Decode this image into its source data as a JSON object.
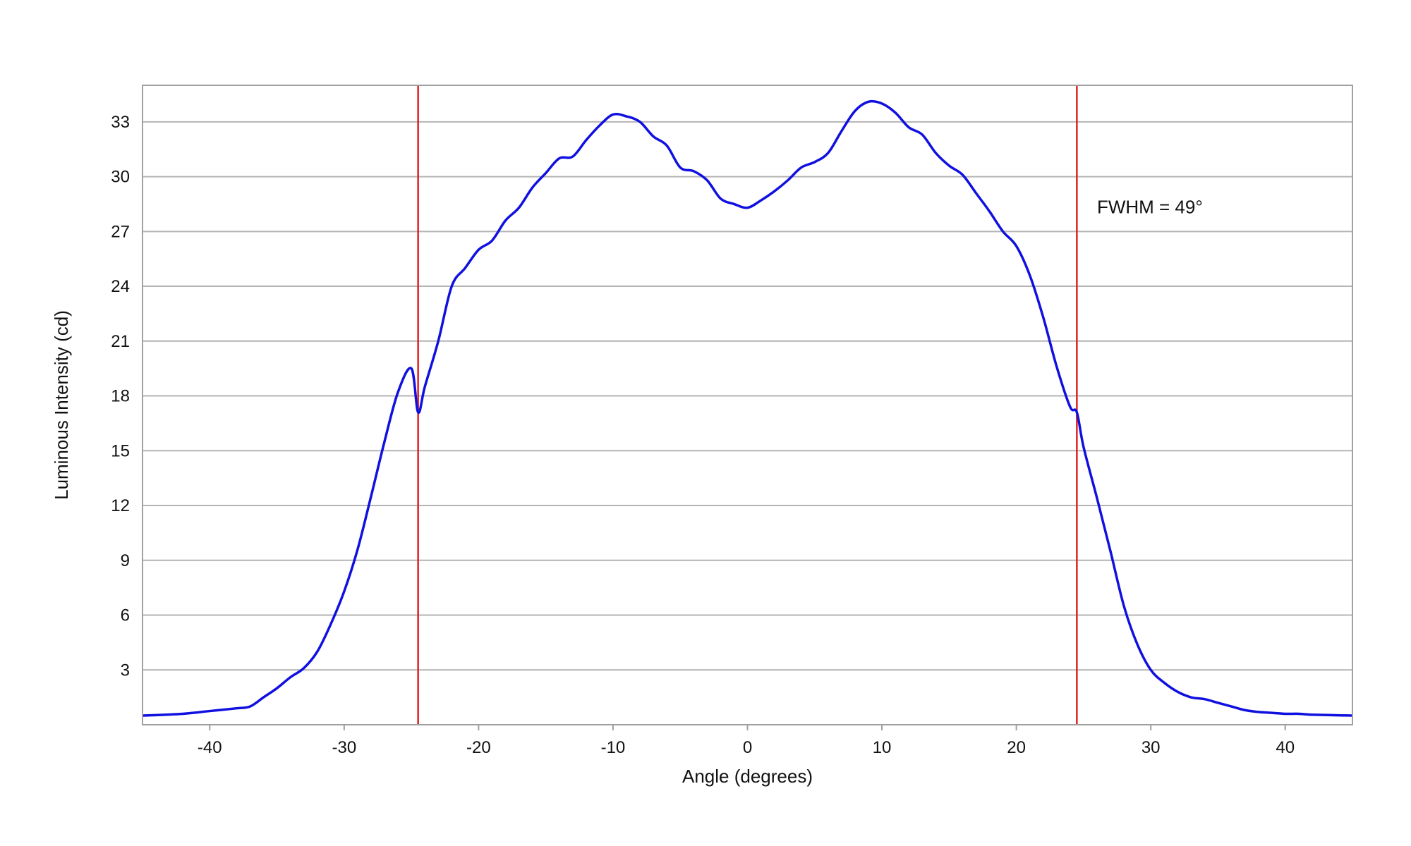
{
  "chart_data": {
    "type": "line",
    "title": "",
    "xlabel": "Angle (degrees)",
    "ylabel": "Luminous Intensity (cd)",
    "xlim": [
      -45,
      45
    ],
    "ylim": [
      0,
      35
    ],
    "grid": "horizontal",
    "legend": "none",
    "x_ticks": [
      -40,
      -30,
      -20,
      -10,
      0,
      10,
      20,
      30,
      40
    ],
    "x_tick_labels": [
      "-40",
      "-30",
      "-20",
      "-10",
      "0",
      "10",
      "20",
      "30",
      "40"
    ],
    "y_ticks": [
      3,
      6,
      9,
      12,
      15,
      18,
      21,
      24,
      27,
      30,
      33
    ],
    "y_tick_labels": [
      "3",
      "6",
      "9",
      "12",
      "15",
      "18",
      "21",
      "24",
      "27",
      "30",
      "33"
    ],
    "series": [
      {
        "color": "#1010e0",
        "x": [
          -45,
          -42,
          -40,
          -38,
          -37,
          -36,
          -35,
          -34,
          -33,
          -32,
          -31,
          -30,
          -29,
          -28,
          -27,
          -26,
          -25,
          -24.5,
          -24,
          -23,
          -22,
          -21,
          -20,
          -19,
          -18,
          -17,
          -16,
          -15,
          -14,
          -13,
          -12,
          -11,
          -10,
          -9,
          -8,
          -7,
          -6,
          -5,
          -4,
          -3,
          -2,
          -1,
          0,
          1,
          2,
          3,
          4,
          5,
          6,
          7,
          8,
          9,
          10,
          11,
          12,
          13,
          14,
          15,
          16,
          17,
          18,
          19,
          20,
          21,
          22,
          23,
          24,
          24.5,
          25,
          26,
          27,
          28,
          29,
          30,
          31,
          32,
          33,
          34,
          35,
          36,
          37,
          38,
          39,
          40,
          41,
          42,
          45
        ],
        "y": [
          0.5,
          0.6,
          0.75,
          0.9,
          1.0,
          1.5,
          2.0,
          2.6,
          3.1,
          4.0,
          5.5,
          7.3,
          9.6,
          12.5,
          15.5,
          18.2,
          19.5,
          17.1,
          18.5,
          21.0,
          24.0,
          25.0,
          26.0,
          26.5,
          27.6,
          28.3,
          29.4,
          30.2,
          31.0,
          31.1,
          32.0,
          32.8,
          33.4,
          33.3,
          33.0,
          32.2,
          31.7,
          30.5,
          30.3,
          29.8,
          28.8,
          28.5,
          28.3,
          28.7,
          29.2,
          29.8,
          30.5,
          30.8,
          31.3,
          32.5,
          33.6,
          34.1,
          34.0,
          33.5,
          32.7,
          32.3,
          31.3,
          30.6,
          30.1,
          29.1,
          28.1,
          27.0,
          26.2,
          24.6,
          22.3,
          19.6,
          17.4,
          17.1,
          15.2,
          12.4,
          9.5,
          6.5,
          4.4,
          3.0,
          2.3,
          1.8,
          1.5,
          1.4,
          1.2,
          1.0,
          0.8,
          0.7,
          0.65,
          0.6,
          0.6,
          0.55,
          0.5
        ]
      }
    ],
    "vertical_lines": [
      {
        "x": -24.5,
        "color": "#e02020"
      },
      {
        "x": 24.5,
        "color": "#e02020"
      }
    ],
    "annotations": [
      {
        "text": "FWHM = 49°",
        "x": 26,
        "y": 28
      }
    ]
  }
}
